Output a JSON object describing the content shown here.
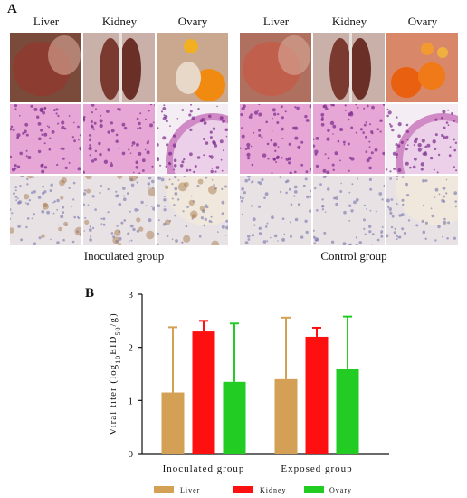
{
  "panel_a": {
    "letter": "A",
    "left_group": {
      "label": "Inoculated group",
      "columns": [
        "Liver",
        "Kidney",
        "Ovary"
      ]
    },
    "right_group": {
      "label": "Control group",
      "columns": [
        "Liver",
        "Kidney",
        "Ovary"
      ]
    },
    "rows": [
      "gross-photo",
      "he-stain",
      "ihc-stain"
    ]
  },
  "panel_b": {
    "letter": "B"
  },
  "chart_data": {
    "type": "bar",
    "categories": [
      "Inoculated group",
      "Exposed group"
    ],
    "series": [
      {
        "name": "Liver",
        "color": "#d4a055",
        "values": [
          1.15,
          1.4
        ],
        "error": [
          1.23,
          1.16
        ]
      },
      {
        "name": "Kidney",
        "color": "#ff1010",
        "values": [
          2.3,
          2.2
        ],
        "error": [
          0.2,
          0.17
        ]
      },
      {
        "name": "Ovary",
        "color": "#22cc22",
        "values": [
          1.35,
          1.6
        ],
        "error": [
          1.1,
          0.98
        ]
      }
    ],
    "ylabel_prefix": "Viral titer (log",
    "ylabel_sub1": "10",
    "ylabel_mid": "EID",
    "ylabel_sub2": "50",
    "ylabel_suffix": "/g)",
    "ylim": [
      0,
      3
    ],
    "yticks": [
      0,
      1,
      2,
      3
    ],
    "legend_placement": "bottom"
  }
}
